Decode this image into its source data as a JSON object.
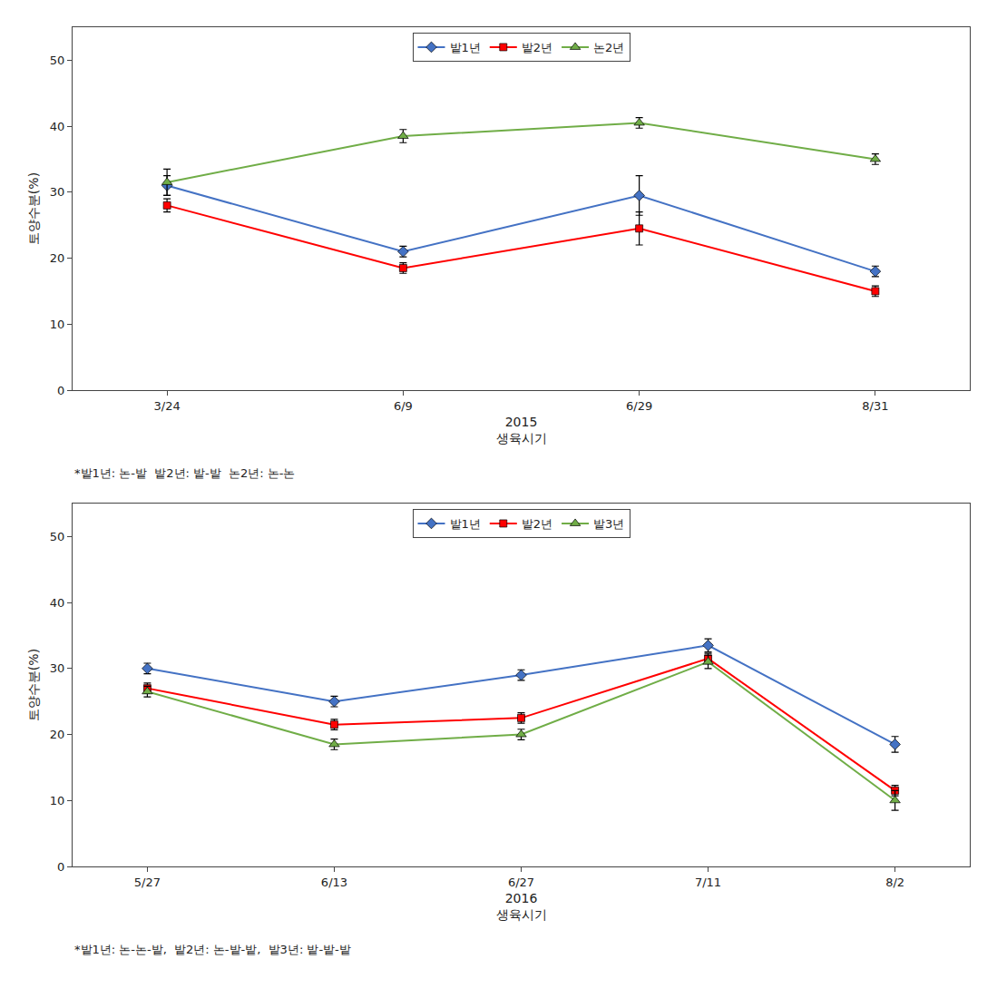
{
  "chart_data": [
    {
      "type": "line",
      "categories": [
        "3/24",
        "6/9",
        "6/29",
        "8/31"
      ],
      "xlabel": "2015\n생육시기",
      "ylabel": "토양수분(%)",
      "ylim": [
        0,
        55
      ],
      "yticks": [
        0,
        10,
        20,
        30,
        40,
        50
      ],
      "grid": false,
      "legend": "upper center",
      "annotations": [
        "*밭1년: 논-밭  밭2년: 밭-밭  논2년: 논-논"
      ],
      "series": [
        {
          "name": "밭1년",
          "color": "#4472C4",
          "marker": "diamond",
          "values": [
            31.0,
            21.0,
            29.5,
            18.0
          ],
          "yerr": [
            1.5,
            0.8,
            3.0,
            0.8
          ]
        },
        {
          "name": "밭2년",
          "color": "#FF0000",
          "marker": "square",
          "values": [
            28.0,
            18.5,
            24.5,
            15.0
          ],
          "yerr": [
            1.0,
            0.8,
            2.5,
            0.8
          ]
        },
        {
          "name": "논2년",
          "color": "#70AD47",
          "marker": "triangle-up",
          "values": [
            31.5,
            38.5,
            40.5,
            35.0
          ],
          "yerr": [
            2.0,
            1.0,
            0.8,
            0.8
          ]
        }
      ]
    },
    {
      "type": "line",
      "categories": [
        "5/27",
        "6/13",
        "6/27",
        "7/11",
        "8/2"
      ],
      "xlabel": "2016\n생육시기",
      "ylabel": "토양수분(%)",
      "ylim": [
        0,
        55
      ],
      "yticks": [
        0,
        10,
        20,
        30,
        40,
        50
      ],
      "grid": false,
      "legend": "upper center",
      "annotations": [
        "*밭1년: 논-논-밭,  밭2년: 논-밭-밭,  밭3년: 밭-밭-밭"
      ],
      "series": [
        {
          "name": "밭1년",
          "color": "#4472C4",
          "marker": "diamond",
          "values": [
            30.0,
            25.0,
            29.0,
            33.5,
            18.5
          ],
          "yerr": [
            0.8,
            0.8,
            0.8,
            1.0,
            1.2
          ]
        },
        {
          "name": "밭2년",
          "color": "#FF0000",
          "marker": "square",
          "values": [
            27.0,
            21.5,
            22.5,
            31.5,
            11.5
          ],
          "yerr": [
            0.8,
            0.8,
            0.8,
            0.8,
            0.8
          ]
        },
        {
          "name": "밭3년",
          "color": "#70AD47",
          "marker": "triangle-up",
          "values": [
            26.5,
            18.5,
            20.0,
            31.0,
            10.0
          ],
          "yerr": [
            0.8,
            0.8,
            0.8,
            1.0,
            1.5
          ]
        }
      ]
    }
  ]
}
